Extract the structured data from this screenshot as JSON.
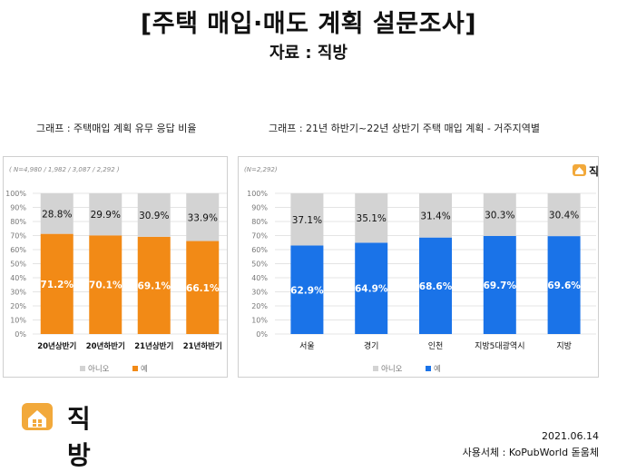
{
  "header": {
    "title": "[주택 매입·매도 계획 설문조사]",
    "subtitle": "자료 : 직방"
  },
  "brand": {
    "name": "직방",
    "accent": "#f2a93b"
  },
  "footer": {
    "date": "2021.06.14",
    "font_note": "사용서체 : KoPubWorld 돋움체"
  },
  "chart_data": [
    {
      "type": "bar",
      "stacked": true,
      "caption": "그래프 : 주택매입 계획 유무 응답 비율",
      "note": "( N=4,980 / 1,982 / 3,087 / 2,292 )",
      "categories": [
        "20년상반기",
        "20년하반기",
        "21년상반기",
        "21년하반기"
      ],
      "series": [
        {
          "name": "예",
          "color": "#f28a16",
          "values": [
            71.2,
            70.1,
            69.1,
            66.1
          ]
        },
        {
          "name": "아니오",
          "color": "#d3d3d3",
          "values": [
            28.8,
            29.9,
            30.9,
            33.9
          ]
        }
      ],
      "ylim": [
        0,
        100
      ],
      "yticks": [
        "0%",
        "10%",
        "20%",
        "30%",
        "40%",
        "50%",
        "60%",
        "70%",
        "80%",
        "90%",
        "100%"
      ],
      "legend": "bottom",
      "legend_order": [
        "아니오",
        "예"
      ]
    },
    {
      "type": "bar",
      "stacked": true,
      "caption": "그래프 : 21년 하반기~22년 상반기 주택 매입 계획 - 거주지역별",
      "note": "(N=2,292)",
      "categories": [
        "서울",
        "경기",
        "인천",
        "지방5대광역시",
        "지방"
      ],
      "series": [
        {
          "name": "예",
          "color": "#1a73e8",
          "values": [
            62.9,
            64.9,
            68.6,
            69.7,
            69.6
          ]
        },
        {
          "name": "아니오",
          "color": "#d3d3d3",
          "values": [
            37.1,
            35.1,
            31.4,
            30.3,
            30.4
          ]
        }
      ],
      "ylim": [
        0,
        100
      ],
      "yticks": [
        "0%",
        "10%",
        "20%",
        "30%",
        "40%",
        "50%",
        "60%",
        "70%",
        "80%",
        "90%",
        "100%"
      ],
      "legend": "bottom",
      "legend_order": [
        "아니오",
        "예"
      ],
      "logo": "직방"
    }
  ]
}
